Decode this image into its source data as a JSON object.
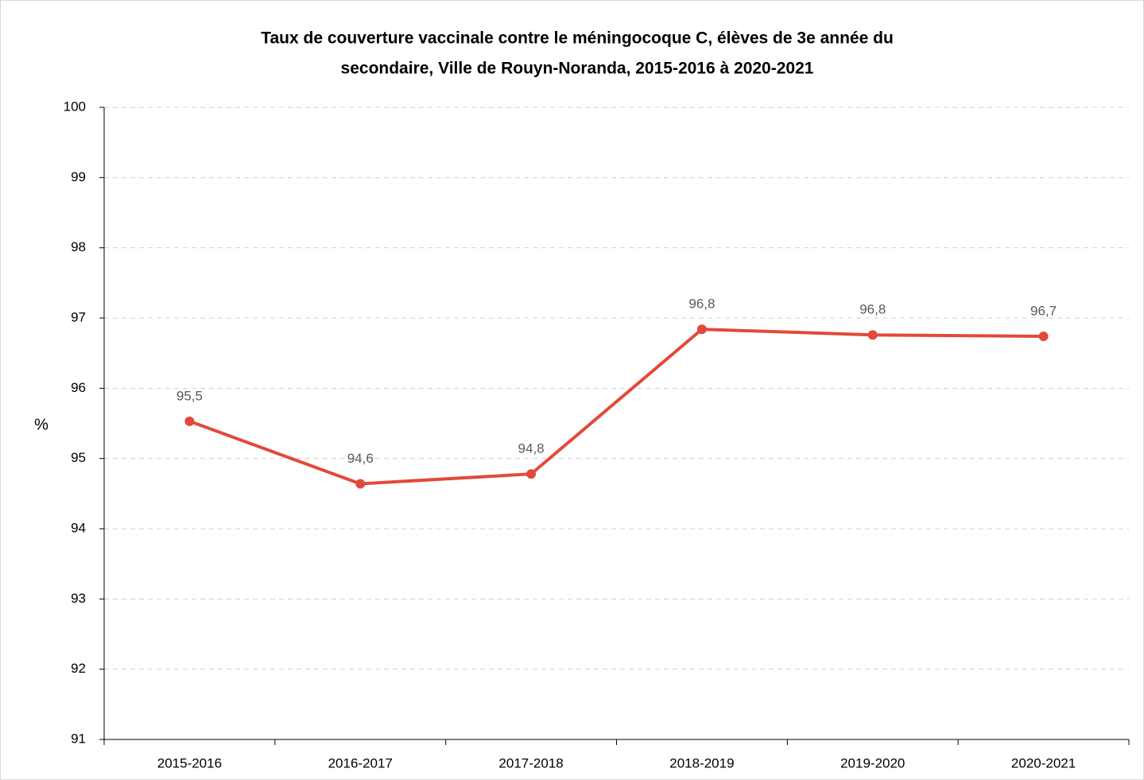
{
  "chart_data": {
    "type": "line",
    "title_lines": [
      "Taux de couverture vaccinale contre le méningocoque C, élèves de 3e année du",
      "secondaire, Ville de Rouyn-Noranda, 2015-2016 à 2020-2021"
    ],
    "y_label": "%",
    "categories": [
      "2015-2016",
      "2016-2017",
      "2017-2018",
      "2018-2019",
      "2019-2020",
      "2020-2021"
    ],
    "series": [
      {
        "name": "Taux de couverture",
        "color": "#e2493a",
        "values": [
          95.53,
          94.64,
          94.78,
          96.84,
          96.76,
          96.74
        ],
        "value_labels": [
          "95,5",
          "94,6",
          "94,8",
          "96,8",
          "96,8",
          "96,7"
        ]
      }
    ],
    "ylim": [
      91,
      100
    ],
    "yticks": [
      91,
      92,
      93,
      94,
      95,
      96,
      97,
      98,
      99,
      100
    ],
    "grid": true
  }
}
